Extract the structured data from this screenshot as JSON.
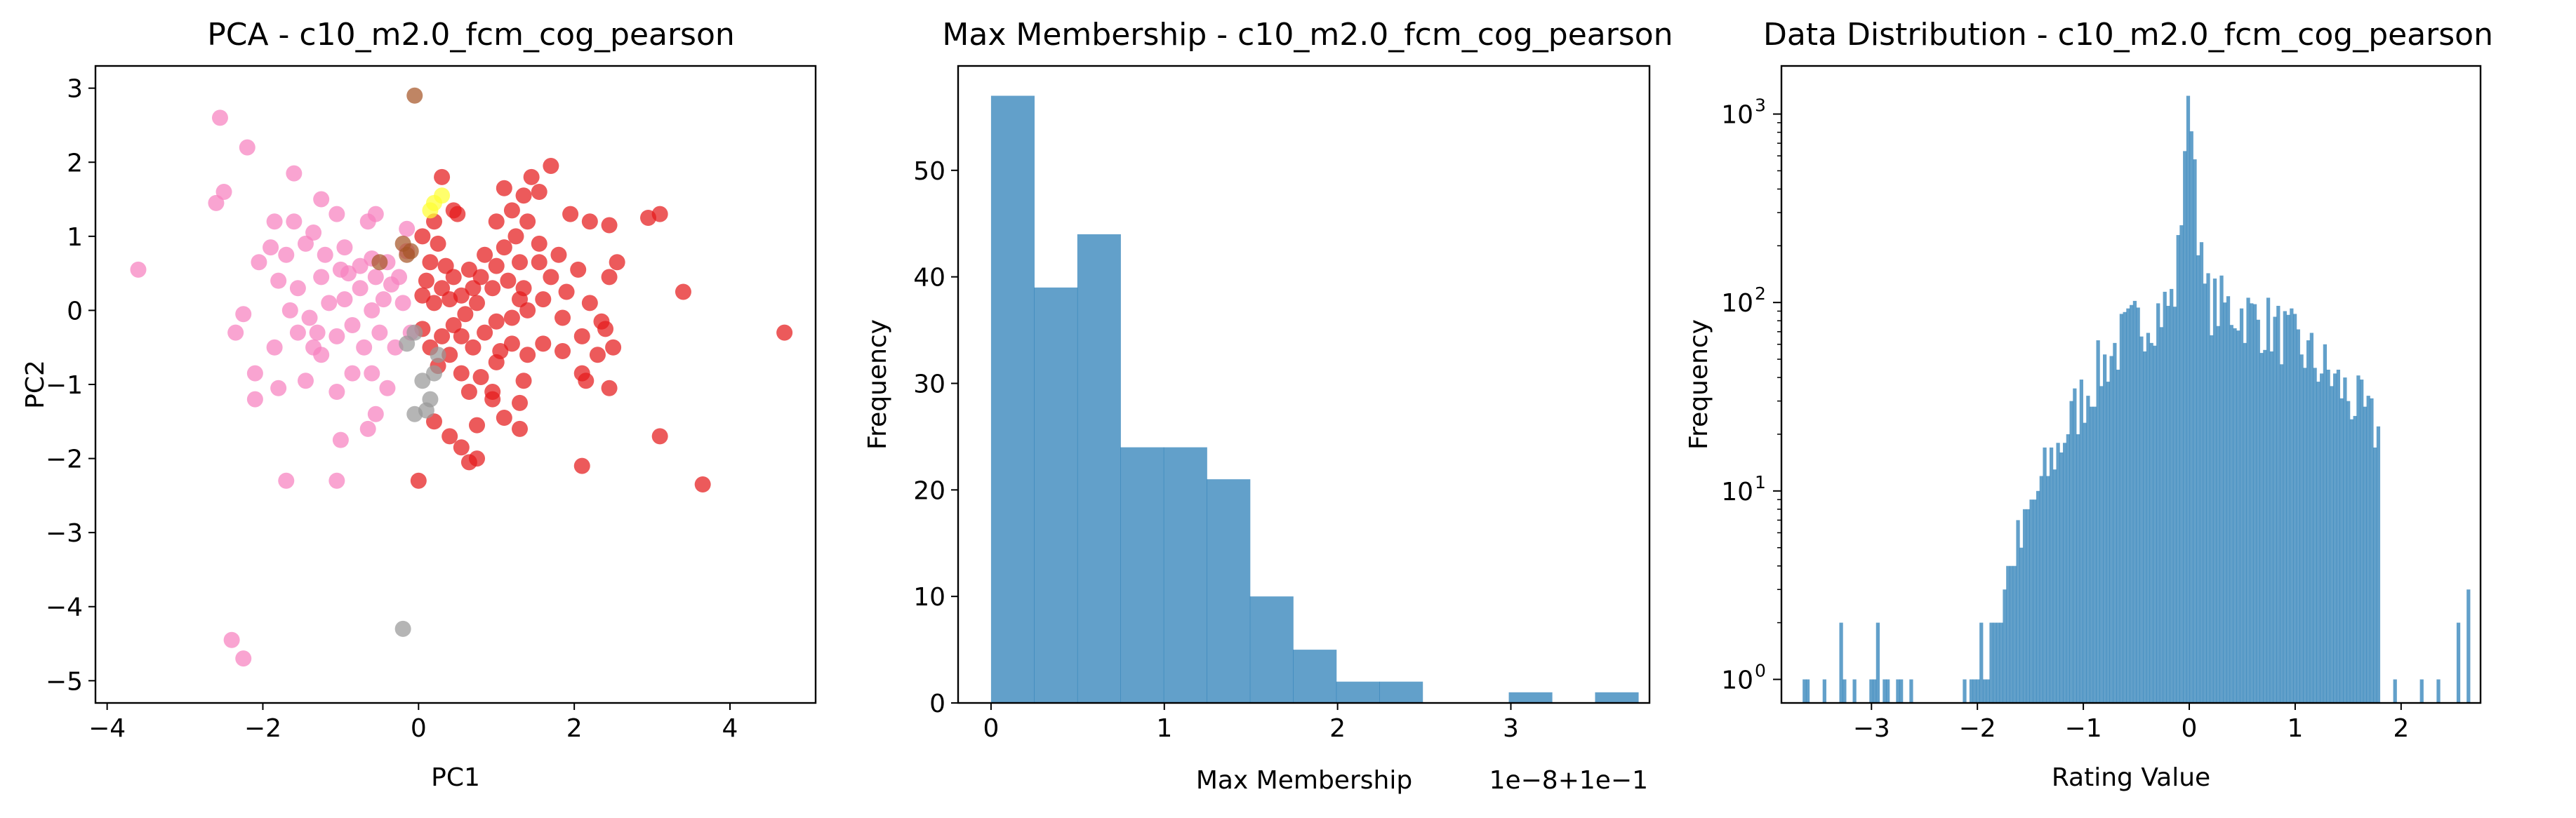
{
  "chart_data": [
    {
      "type": "scatter",
      "title": "PCA - c10_m2.0_fcm_cog_pearson",
      "xlabel": "PC1",
      "ylabel": "PC2",
      "xlim": [
        -4.15,
        5.1
      ],
      "ylim": [
        -5.3,
        3.3
      ],
      "xticks": [
        -4,
        -2,
        0,
        2,
        4
      ],
      "yticks": [
        -5,
        -4,
        -3,
        -2,
        -1,
        0,
        1,
        2,
        3
      ],
      "grid": false,
      "colors": {
        "red": "#e41a1c",
        "pink": "#f781bf",
        "gray": "#999999",
        "brown": "#a65628",
        "yellow": "#ffff33"
      },
      "series": [
        {
          "color_key": "red",
          "points": [
            [
              0.3,
              1.8
            ],
            [
              0.45,
              1.35
            ],
            [
              0.2,
              1.2
            ],
            [
              0.05,
              1.0
            ],
            [
              0.25,
              0.9
            ],
            [
              0.15,
              0.65
            ],
            [
              0.35,
              0.6
            ],
            [
              0.45,
              0.45
            ],
            [
              0.3,
              0.3
            ],
            [
              0.1,
              0.4
            ],
            [
              0.05,
              0.2
            ],
            [
              0.2,
              0.1
            ],
            [
              0.4,
              0.15
            ],
            [
              0.55,
              0.2
            ],
            [
              0.7,
              0.3
            ],
            [
              0.8,
              0.45
            ],
            [
              0.65,
              0.55
            ],
            [
              0.85,
              0.75
            ],
            [
              1.0,
              0.6
            ],
            [
              1.1,
              0.85
            ],
            [
              1.25,
              1.0
            ],
            [
              1.0,
              1.2
            ],
            [
              1.2,
              1.35
            ],
            [
              1.35,
              1.55
            ],
            [
              1.1,
              1.65
            ],
            [
              1.45,
              1.8
            ],
            [
              1.4,
              1.2
            ],
            [
              1.55,
              0.9
            ],
            [
              1.3,
              0.65
            ],
            [
              1.15,
              0.4
            ],
            [
              0.95,
              0.3
            ],
            [
              0.75,
              0.1
            ],
            [
              0.6,
              -0.05
            ],
            [
              0.45,
              -0.2
            ],
            [
              0.3,
              -0.35
            ],
            [
              0.15,
              -0.5
            ],
            [
              0.05,
              -0.25
            ],
            [
              0.25,
              -0.75
            ],
            [
              0.4,
              -0.6
            ],
            [
              0.55,
              -0.35
            ],
            [
              0.7,
              -0.5
            ],
            [
              0.85,
              -0.3
            ],
            [
              1.0,
              -0.15
            ],
            [
              1.2,
              -0.1
            ],
            [
              1.4,
              0.0
            ],
            [
              1.35,
              0.3
            ],
            [
              1.6,
              0.15
            ],
            [
              1.7,
              0.45
            ],
            [
              1.55,
              0.65
            ],
            [
              1.8,
              0.75
            ],
            [
              2.05,
              0.55
            ],
            [
              1.9,
              0.25
            ],
            [
              2.2,
              0.1
            ],
            [
              2.35,
              -0.15
            ],
            [
              2.1,
              -0.35
            ],
            [
              1.85,
              -0.55
            ],
            [
              1.6,
              -0.45
            ],
            [
              1.4,
              -0.6
            ],
            [
              1.2,
              -0.45
            ],
            [
              1.0,
              -0.7
            ],
            [
              0.8,
              -0.9
            ],
            [
              0.65,
              -1.1
            ],
            [
              0.55,
              -0.85
            ],
            [
              1.35,
              -0.95
            ],
            [
              1.3,
              -1.25
            ],
            [
              1.1,
              -1.45
            ],
            [
              0.95,
              -1.2
            ],
            [
              0.75,
              -1.55
            ],
            [
              0.4,
              -1.7
            ],
            [
              0.55,
              -1.85
            ],
            [
              0.65,
              -2.05
            ],
            [
              0.0,
              -2.3
            ],
            [
              0.2,
              -1.5
            ],
            [
              1.3,
              -1.6
            ],
            [
              2.1,
              -0.85
            ],
            [
              2.3,
              -0.6
            ],
            [
              2.5,
              -0.5
            ],
            [
              2.4,
              -0.25
            ],
            [
              2.45,
              1.15
            ],
            [
              2.2,
              1.2
            ],
            [
              1.95,
              1.3
            ],
            [
              1.7,
              1.95
            ],
            [
              1.55,
              1.6
            ],
            [
              2.45,
              0.45
            ],
            [
              2.55,
              0.65
            ],
            [
              2.95,
              1.25
            ],
            [
              3.1,
              1.3
            ],
            [
              3.4,
              0.25
            ],
            [
              2.15,
              -0.95
            ],
            [
              2.45,
              -1.05
            ],
            [
              2.1,
              -2.1
            ],
            [
              3.1,
              -1.7
            ],
            [
              3.65,
              -2.35
            ],
            [
              4.7,
              -0.3
            ],
            [
              0.75,
              -2.0
            ],
            [
              0.95,
              -1.1
            ],
            [
              1.85,
              -0.1
            ],
            [
              1.3,
              0.15
            ],
            [
              0.5,
              1.3
            ],
            [
              1.05,
              -0.55
            ]
          ]
        },
        {
          "color_key": "pink",
          "points": [
            [
              -2.55,
              2.6
            ],
            [
              -2.2,
              2.2
            ],
            [
              -1.6,
              1.85
            ],
            [
              -1.25,
              1.5
            ],
            [
              -1.05,
              1.3
            ],
            [
              -0.65,
              1.2
            ],
            [
              -0.55,
              1.3
            ],
            [
              -2.6,
              1.45
            ],
            [
              -2.5,
              1.6
            ],
            [
              -1.85,
              1.2
            ],
            [
              -1.6,
              1.2
            ],
            [
              -1.35,
              1.05
            ],
            [
              -1.9,
              0.85
            ],
            [
              -1.7,
              0.75
            ],
            [
              -1.45,
              0.9
            ],
            [
              -1.2,
              0.75
            ],
            [
              -0.95,
              0.85
            ],
            [
              -0.75,
              0.6
            ],
            [
              -1.0,
              0.55
            ],
            [
              -1.25,
              0.45
            ],
            [
              -1.55,
              0.3
            ],
            [
              -1.8,
              0.4
            ],
            [
              -2.05,
              0.65
            ],
            [
              -1.65,
              0.0
            ],
            [
              -1.4,
              -0.1
            ],
            [
              -1.15,
              0.1
            ],
            [
              -0.95,
              0.15
            ],
            [
              -0.75,
              0.3
            ],
            [
              -0.55,
              0.45
            ],
            [
              -0.6,
              0.0
            ],
            [
              -0.85,
              -0.2
            ],
            [
              -1.05,
              -0.35
            ],
            [
              -1.35,
              -0.5
            ],
            [
              -1.55,
              -0.3
            ],
            [
              -1.85,
              -0.5
            ],
            [
              -2.25,
              -0.05
            ],
            [
              -2.35,
              -0.3
            ],
            [
              -2.1,
              -0.85
            ],
            [
              -1.8,
              -1.05
            ],
            [
              -2.1,
              -1.2
            ],
            [
              -1.05,
              -1.1
            ],
            [
              -0.85,
              -0.85
            ],
            [
              -0.6,
              -0.85
            ],
            [
              -0.4,
              -1.05
            ],
            [
              -0.55,
              -1.4
            ],
            [
              -0.65,
              -1.6
            ],
            [
              -1.0,
              -1.75
            ],
            [
              -1.05,
              -2.3
            ],
            [
              -1.7,
              -2.3
            ],
            [
              -0.3,
              -0.5
            ],
            [
              -0.1,
              -0.3
            ],
            [
              -0.2,
              0.1
            ],
            [
              -0.35,
              0.35
            ],
            [
              -0.4,
              0.65
            ],
            [
              -0.25,
              0.45
            ],
            [
              -0.15,
              0.8
            ],
            [
              -0.5,
              -0.3
            ],
            [
              -0.7,
              -0.5
            ],
            [
              -1.25,
              -0.6
            ],
            [
              -1.45,
              -0.95
            ],
            [
              -0.9,
              0.5
            ],
            [
              -0.45,
              0.15
            ],
            [
              -3.6,
              0.55
            ],
            [
              -2.4,
              -4.45
            ],
            [
              -2.25,
              -4.7
            ],
            [
              -0.15,
              1.1
            ],
            [
              -0.6,
              0.7
            ],
            [
              -1.3,
              -0.3
            ]
          ]
        },
        {
          "color_key": "gray",
          "points": [
            [
              -0.15,
              -0.45
            ],
            [
              -0.05,
              -0.3
            ],
            [
              0.05,
              -0.95
            ],
            [
              0.15,
              -1.2
            ],
            [
              0.1,
              -1.35
            ],
            [
              -0.05,
              -1.4
            ],
            [
              0.2,
              -0.85
            ],
            [
              -0.2,
              -4.3
            ],
            [
              0.25,
              -0.6
            ]
          ]
        },
        {
          "color_key": "brown",
          "points": [
            [
              -0.05,
              2.9
            ],
            [
              -0.2,
              0.9
            ],
            [
              -0.15,
              0.75
            ],
            [
              -0.5,
              0.65
            ],
            [
              -0.1,
              0.8
            ]
          ]
        },
        {
          "color_key": "yellow",
          "points": [
            [
              0.3,
              1.55
            ],
            [
              0.2,
              1.45
            ],
            [
              0.15,
              1.35
            ]
          ]
        }
      ]
    },
    {
      "type": "bar",
      "title": "Max Membership - c10_m2.0_fcm_cog_pearson",
      "xlabel": "Max Membership",
      "ylabel": "Frequency",
      "offset_text": "1e−8+1e−1",
      "xlim": [
        -0.19,
        3.8
      ],
      "ylim": [
        0,
        59.8
      ],
      "xticks": [
        0,
        1,
        2,
        3
      ],
      "yticks": [
        0,
        10,
        20,
        30,
        40,
        50
      ],
      "bar_color": "#1f77b4",
      "bar_alpha": 0.7,
      "bin_edges": [
        0,
        0.249,
        0.498,
        0.747,
        0.996,
        1.245,
        1.494,
        1.743,
        1.992,
        2.241,
        2.49,
        2.739,
        2.988,
        3.237,
        3.486,
        3.735
      ],
      "values": [
        57,
        39,
        44,
        24,
        24,
        21,
        10,
        5,
        2,
        2,
        0,
        0,
        1,
        0,
        1
      ]
    },
    {
      "type": "bar",
      "title": "Data Distribution - c10_m2.0_fcm_cog_pearson",
      "xlabel": "Rating Value",
      "ylabel": "Frequency",
      "yscale": "log",
      "xlim": [
        -3.85,
        2.75
      ],
      "ylim": [
        0.75,
        1800
      ],
      "xticks": [
        -3,
        -2,
        -1,
        0,
        1,
        2
      ],
      "yticks": [
        1,
        10,
        100,
        1000
      ],
      "yticklabels": [
        "10",
        "10",
        "10",
        "10"
      ],
      "ytick_exponents": [
        "0",
        "1",
        "2",
        "3"
      ],
      "bar_color": "#1f77b4",
      "bar_alpha": 0.7,
      "histogram_shape": {
        "x_min": -3.65,
        "x_max": 2.65,
        "bins": 200,
        "peak_value": 0.0,
        "peak_count": 1250
      },
      "sparse_bars": [
        [
          -3.65,
          1
        ],
        [
          -3.45,
          1
        ],
        [
          -3.3,
          2
        ],
        [
          -3.15,
          1
        ],
        [
          -2.95,
          2
        ],
        [
          -2.85,
          1
        ],
        [
          2.2,
          1
        ],
        [
          2.35,
          1
        ],
        [
          2.55,
          2
        ],
        [
          2.62,
          3
        ]
      ]
    }
  ]
}
